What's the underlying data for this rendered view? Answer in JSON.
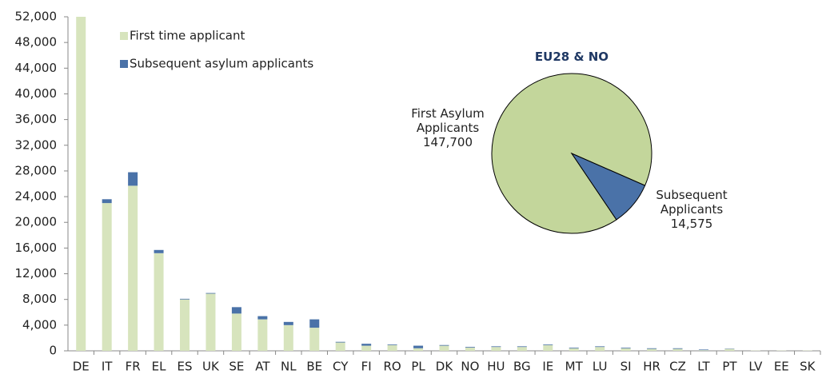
{
  "chart_data": [
    {
      "type": "bar",
      "stacked": true,
      "categories": [
        "DE",
        "IT",
        "FR",
        "EL",
        "ES",
        "UK",
        "SE",
        "AT",
        "NL",
        "BE",
        "CY",
        "FI",
        "RO",
        "PL",
        "DK",
        "NO",
        "HU",
        "BG",
        "IE",
        "MT",
        "LU",
        "SI",
        "HR",
        "CZ",
        "LT",
        "PT",
        "LV",
        "EE",
        "SK"
      ],
      "series": [
        {
          "name": "First time applicant",
          "color": "#d7e4bd",
          "values": [
            52000,
            23000,
            25700,
            15200,
            8000,
            8900,
            5800,
            4900,
            4000,
            3600,
            1300,
            800,
            900,
            400,
            800,
            500,
            600,
            600,
            900,
            400,
            600,
            400,
            300,
            300,
            100,
            300,
            50,
            50,
            50
          ]
        },
        {
          "name": "Subsequent asylum applicants",
          "color": "#4a72a8",
          "values": [
            0,
            600,
            2100,
            500,
            100,
            100,
            1000,
            500,
            500,
            1300,
            100,
            300,
            100,
            400,
            100,
            100,
            100,
            100,
            100,
            100,
            100,
            100,
            100,
            100,
            100,
            50,
            0,
            0,
            0
          ]
        }
      ],
      "ylim": [
        0,
        52000
      ],
      "yticks": [
        0,
        {
          "value": 4000,
          "label": "4,000"
        },
        {
          "value": 8000,
          "label": "8,000"
        },
        {
          "value": 12000,
          "label": "12,000"
        },
        {
          "value": 16000,
          "label": "16,000"
        },
        {
          "value": 20000,
          "label": "20,000"
        },
        {
          "value": 24000,
          "label": "24,000"
        },
        {
          "value": 28000,
          "label": "28,000"
        },
        {
          "value": 32000,
          "label": "32,000"
        },
        {
          "value": 36000,
          "label": "36,000"
        },
        {
          "value": 40000,
          "label": "40,000"
        },
        {
          "value": 44000,
          "label": "44,000"
        },
        {
          "value": 48000,
          "label": "48,000"
        },
        {
          "value": 52000,
          "label": "52,000"
        }
      ],
      "legend": "upper left"
    },
    {
      "type": "pie",
      "title": "EU28 & NO",
      "categories": [
        "First Asylum Applicants",
        "Subsequent Applicants"
      ],
      "values": [
        147700,
        14575
      ],
      "value_labels": [
        "147,700",
        "14,575"
      ],
      "colors": [
        "#c3d69b",
        "#4a72a8"
      ]
    }
  ]
}
